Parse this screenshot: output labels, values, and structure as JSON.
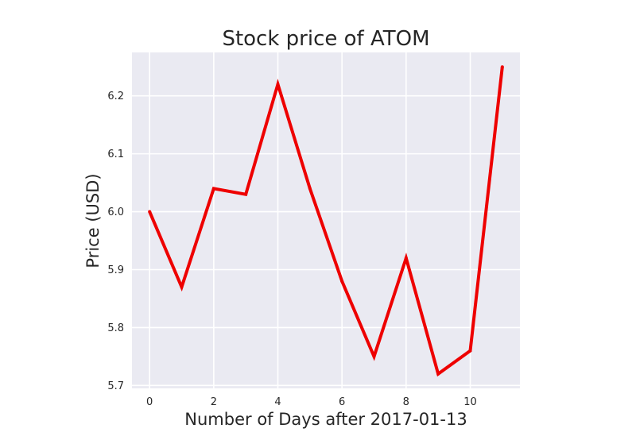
{
  "chart_data": {
    "type": "line",
    "title": "Stock price of ATOM",
    "xlabel": "Number of Days after 2017-01-13",
    "ylabel": "Price (USD)",
    "xlim": [
      -0.55,
      11.55
    ],
    "ylim": [
      5.695,
      6.275
    ],
    "grid": true,
    "x_ticks": [
      0,
      2,
      4,
      6,
      8,
      10
    ],
    "x_tick_labels": [
      "0",
      "2",
      "4",
      "6",
      "8",
      "10"
    ],
    "y_ticks": [
      5.7,
      5.8,
      5.9,
      6.0,
      6.1,
      6.2
    ],
    "y_tick_labels": [
      "5.7",
      "5.8",
      "5.9",
      "6.0",
      "6.1",
      "6.2"
    ],
    "series": [
      {
        "name": "ATOM",
        "color": "#ee0000",
        "x": [
          0,
          1,
          2,
          3,
          4,
          5,
          6,
          7,
          8,
          9,
          10,
          11
        ],
        "values": [
          6.0,
          5.87,
          6.04,
          6.03,
          6.22,
          6.04,
          5.88,
          5.75,
          5.92,
          5.72,
          5.76,
          6.25
        ]
      }
    ]
  },
  "colors": {
    "plot_background": "#eaeaf2",
    "grid": "#ffffff",
    "line": "#ee0000"
  }
}
